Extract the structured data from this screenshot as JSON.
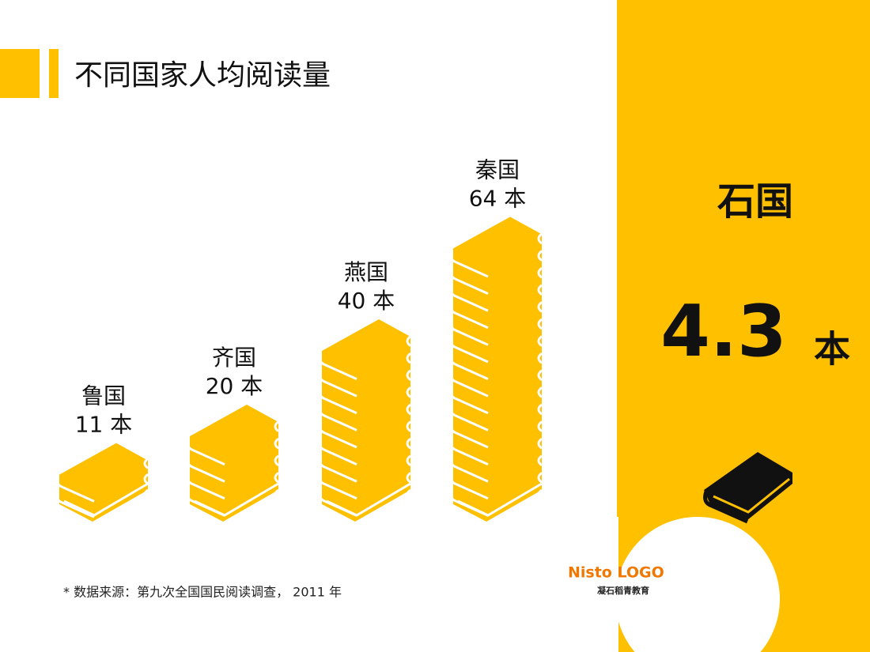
{
  "chart_data": {
    "type": "bookstack",
    "title": "不同国家人均阅读量",
    "categories": [
      "鲁国",
      "齐国",
      "燕国",
      "秦国"
    ],
    "values": [
      11,
      20,
      40,
      64
    ],
    "value_labels": [
      "11 本",
      "20 本",
      "40 本",
      "64 本"
    ],
    "color": "#ffc000"
  },
  "highlight": {
    "category": "石国",
    "value": "4.3",
    "unit": "本"
  },
  "footnote": "* 数据来源：第九次全国国民阅读调查， 2011 年",
  "logo": {
    "brand": "Nisto LOGO",
    "name": "凝石稻青教育"
  }
}
